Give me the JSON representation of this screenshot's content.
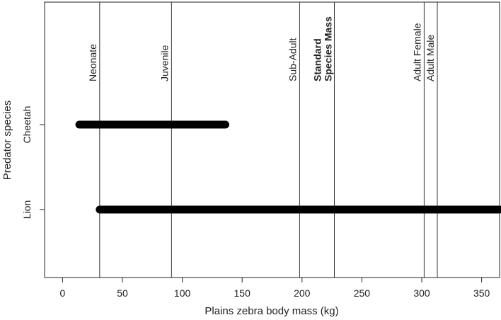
{
  "chart_data": {
    "type": "range",
    "title": "",
    "xlabel": "Plains zebra body mass (kg)",
    "ylabel": "Predator species",
    "xlim": [
      -15,
      365
    ],
    "xticks": [
      0,
      50,
      100,
      150,
      200,
      250,
      300,
      350
    ],
    "categories": [
      "Cheetah",
      "Lion"
    ],
    "ranges": [
      {
        "species": "Cheetah",
        "min": 14,
        "max": 136
      },
      {
        "species": "Lion",
        "min": 31,
        "max": 365
      }
    ],
    "reference_lines": [
      {
        "label": "Neonate",
        "value": 31,
        "bold": false
      },
      {
        "label": "Juvenile",
        "value": 91,
        "bold": false
      },
      {
        "label": "Sub-Adult",
        "value": 198,
        "bold": false
      },
      {
        "label": "Standard",
        "label2": "Species Mass",
        "value": 227,
        "bold": true
      },
      {
        "label": "Adult Female",
        "value": 302,
        "bold": false
      },
      {
        "label": "Adult Male",
        "value": 313,
        "bold": false
      }
    ],
    "grid": false,
    "legend": "none"
  }
}
